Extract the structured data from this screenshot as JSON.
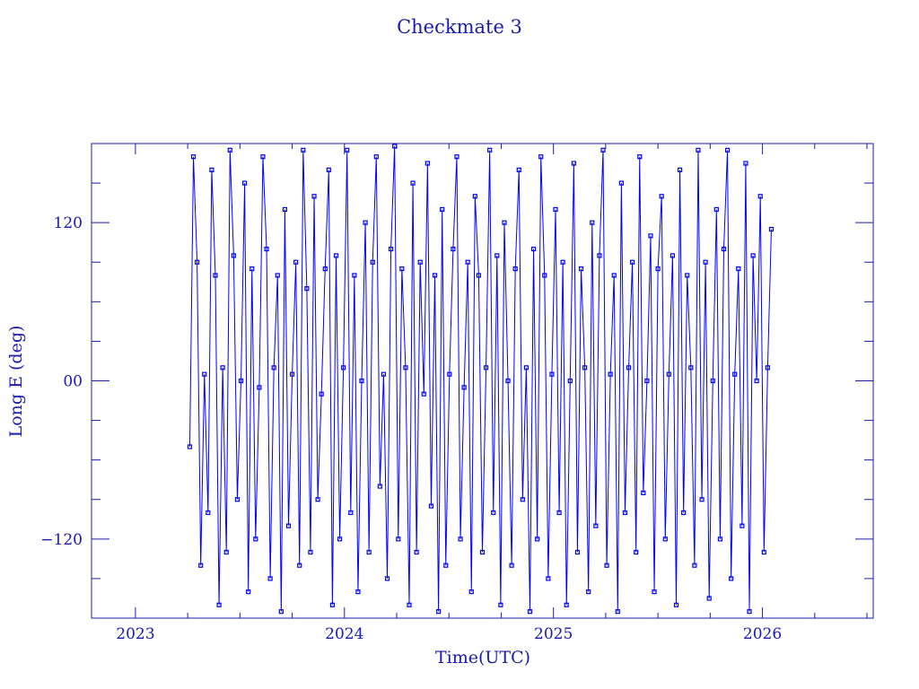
{
  "chart_data": {
    "type": "line",
    "title": "Checkmate 3",
    "xlabel": "Time(UTC)",
    "ylabel": "Long E (deg)",
    "xlim": [
      2022.79,
      2026.53
    ],
    "ylim": [
      -180,
      180
    ],
    "xticks": [
      2023,
      2024,
      2025,
      2026
    ],
    "xtick_labels": [
      "2023",
      "2024",
      "2025",
      "2026"
    ],
    "yticks": [
      -120,
      0,
      120
    ],
    "ytick_labels": [
      "−120",
      "00",
      "120"
    ],
    "marker": "square",
    "color": "#0000ff",
    "series": [
      {
        "name": "Checkmate 3",
        "t_start": 2023.26,
        "t_step": 0.0175,
        "lon": [
          -50,
          170,
          90,
          -140,
          5,
          -100,
          160,
          80,
          -170,
          10,
          -130,
          175,
          95,
          -90,
          0,
          150,
          -160,
          85,
          -120,
          -5,
          170,
          100,
          -150,
          10,
          80,
          -175,
          130,
          -110,
          5,
          90,
          -140,
          175,
          70,
          -130,
          140,
          -90,
          -10,
          85,
          160,
          -170,
          95,
          -120,
          10,
          175,
          -100,
          80,
          -160,
          0,
          120,
          -130,
          90,
          170,
          -80,
          5,
          -150,
          100,
          178,
          -120,
          85,
          10,
          -170,
          150,
          -130,
          90,
          -10,
          165,
          -95,
          80,
          -175,
          130,
          -140,
          5,
          100,
          170,
          -120,
          -5,
          90,
          -160,
          140,
          80,
          -130,
          10,
          175,
          -100,
          95,
          -170,
          120,
          0,
          -140,
          85,
          160,
          -90,
          10,
          -175,
          100,
          -120,
          170,
          80,
          -150,
          5,
          130,
          -100,
          90,
          -170,
          0,
          165,
          -130,
          85,
          10,
          -160,
          120,
          -110,
          95,
          175,
          -140,
          5,
          80,
          -175,
          150,
          -100,
          10,
          90,
          -130,
          170,
          -85,
          0,
          110,
          -160,
          85,
          140,
          -120,
          5,
          95,
          -170,
          160,
          -100,
          80,
          10,
          -140,
          175,
          -90,
          90,
          -165,
          0,
          130,
          -120,
          100,
          175,
          -150,
          5,
          85,
          -110,
          165,
          -175,
          95,
          0,
          140,
          -130,
          10,
          115
        ]
      }
    ]
  }
}
